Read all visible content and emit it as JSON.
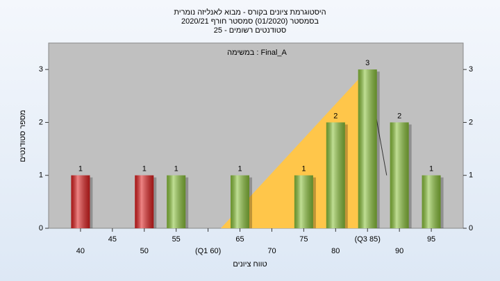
{
  "chart_data": {
    "type": "bar",
    "title": [
      "היסטוגרמת ציונים בקורס - מבוא לאנליזה נומרית",
      "בסמסטר  (01/2020)  סמסטר חורף  2020/21",
      "סטודנטים רשומים - 25"
    ],
    "annotation": "במשימה : Final_A",
    "xlabel": "טווח ציונים",
    "ylabel": "מספר סטודנטים",
    "x": [
      40,
      45,
      50,
      55,
      60,
      65,
      70,
      75,
      80,
      85,
      90,
      95
    ],
    "values": [
      1,
      0,
      1,
      1,
      0,
      1,
      0,
      1,
      2,
      3,
      2,
      1
    ],
    "colors": [
      "#e02020",
      "#8cc43c",
      "#e02020",
      "#8cc43c",
      "#8cc43c",
      "#8cc43c",
      "#8cc43c",
      "#8cc43c",
      "#8cc43c",
      "#8cc43c",
      "#8cc43c",
      "#8cc43c"
    ],
    "xlim": [
      35,
      100
    ],
    "xticks": [
      40,
      45,
      50,
      55,
      {
        "value": 60,
        "label": "(Q1 60)"
      },
      65,
      70,
      75,
      80,
      {
        "value": 85,
        "label": "(Q3 85)"
      },
      90,
      95
    ],
    "ylim": [
      0,
      3.5
    ],
    "yticks": [
      0,
      1,
      2,
      3
    ],
    "overlay": {
      "x": [
        62,
        85,
        88
      ],
      "y": [
        0,
        3,
        1
      ],
      "color": "#ffc64a"
    }
  }
}
